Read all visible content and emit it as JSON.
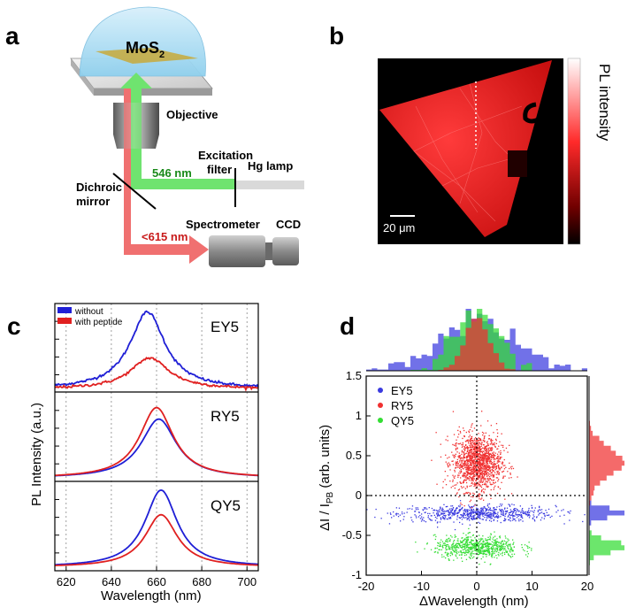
{
  "panels": {
    "a": {
      "letter": "a",
      "sample_label_main": "MoS",
      "sample_label_sub": "2",
      "objective": "Objective",
      "excitation_line1": "Excitation",
      "excitation_line2": "filter",
      "lamp": "Hg lamp",
      "excitation_wavelength": "546 nm",
      "dichroic_line1": "Dichroic",
      "dichroic_line2": "mirror",
      "emission_wavelength": "<615 nm",
      "spectrometer": "Spectrometer",
      "ccd": "CCD",
      "green_color": "#6fe36f",
      "red_color": "#f07070"
    },
    "b": {
      "letter": "b",
      "colorbar_label": "PL intensity",
      "scalebar": "20 μm"
    },
    "c": {
      "letter": "c"
    },
    "d": {
      "letter": "d"
    }
  },
  "chart_data": [
    {
      "type": "line",
      "panel": "c",
      "xlabel": "Wavelength (nm)",
      "ylabel": "PL Intensity (a.u.)",
      "xlim": [
        615,
        705
      ],
      "xticks": [
        620,
        640,
        660,
        680,
        700
      ],
      "grid_x": [
        620,
        640,
        660,
        680,
        700
      ],
      "legend": {
        "position": "top-left",
        "entries": [
          {
            "name": "without",
            "color": "#1f1fd6"
          },
          {
            "name": "with peptide",
            "color": "#e02020"
          }
        ]
      },
      "subplots": [
        {
          "label": "EY5",
          "series": [
            {
              "name": "without",
              "color": "#1f1fd6",
              "peak_x": 656,
              "peak_y": 0.94,
              "width": 12
            },
            {
              "name": "with peptide",
              "color": "#e02020",
              "peak_x": 657,
              "peak_y": 0.38,
              "width": 13
            }
          ]
        },
        {
          "label": "RY5",
          "series": [
            {
              "name": "without",
              "color": "#1f1fd6",
              "peak_x": 661,
              "peak_y": 0.72,
              "width": 12
            },
            {
              "name": "with peptide",
              "color": "#e02020",
              "peak_x": 660,
              "peak_y": 0.86,
              "width": 11.5
            }
          ]
        },
        {
          "label": "QY5",
          "series": [
            {
              "name": "without",
              "color": "#1f1fd6",
              "peak_x": 662,
              "peak_y": 0.94,
              "width": 11
            },
            {
              "name": "with peptide",
              "color": "#e02020",
              "peak_x": 662,
              "peak_y": 0.64,
              "width": 11
            }
          ]
        }
      ]
    },
    {
      "type": "scatter",
      "panel": "d",
      "xlabel": "ΔWavelength (nm)",
      "ylabel_main": "ΔI / I",
      "ylabel_sub": "PB",
      "ylabel_tail": " (arb. units)",
      "xlim": [
        -20,
        20
      ],
      "ylim": [
        -1,
        1.5
      ],
      "xticks": [
        -20,
        -10,
        0,
        10,
        20
      ],
      "yticks": [
        -1,
        -0.5,
        0,
        0.5,
        1,
        1.5
      ],
      "ytick_labels": [
        "-1",
        "-0.5",
        "0",
        "0.5",
        "1",
        "1.5"
      ],
      "reference_lines": {
        "x": 0,
        "y": 0
      },
      "legend": {
        "position": "top-left"
      },
      "series": [
        {
          "name": "EY5",
          "color": "#3a3adf",
          "center_x": 0,
          "center_y": -0.22,
          "sd_x": 7,
          "sd_y": 0.05,
          "n": 700
        },
        {
          "name": "RY5",
          "color": "#f03030",
          "center_x": 0,
          "center_y": 0.42,
          "sd_x": 2.2,
          "sd_y": 0.18,
          "n": 1400
        },
        {
          "name": "QY5",
          "color": "#33dd33",
          "center_x": 0,
          "center_y": -0.64,
          "sd_x": 3.8,
          "sd_y": 0.07,
          "n": 700
        }
      ],
      "histograms": {
        "top": "x-distribution per series",
        "right": "y-distribution per series"
      }
    }
  ]
}
